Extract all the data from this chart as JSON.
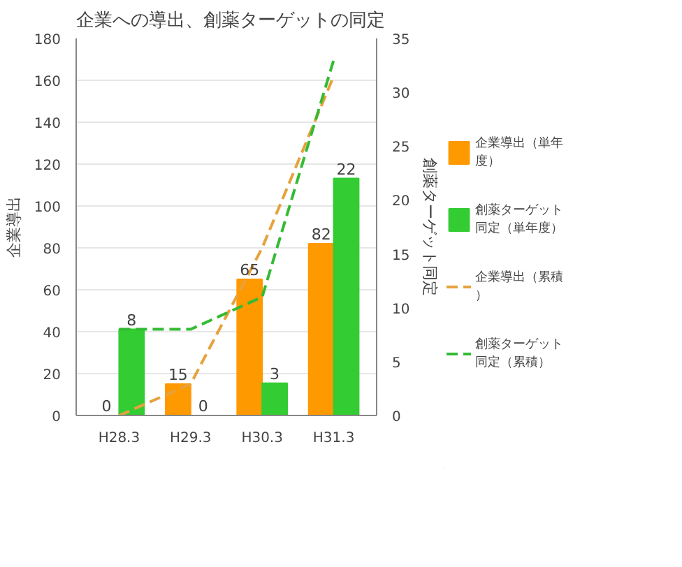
{
  "chart_data": {
    "type": "bar",
    "title": "企業への導出、創薬ターゲットの同定",
    "ylabel": "企業導出",
    "y2label": "創薬ターゲット同定",
    "categories": [
      "H28.3",
      "H29.3",
      "H30.3",
      "H31.3"
    ],
    "series": [
      {
        "name": "企業導出（単年度）",
        "color": "#ff9900",
        "values": [
          0,
          15,
          65,
          82
        ],
        "value_labels": [
          "0",
          "15",
          "65",
          "82"
        ]
      },
      {
        "name": "創薬ターゲット同定（単年度）",
        "color": "#33cc33",
        "values": [
          8,
          0,
          3,
          22
        ],
        "axis": "y2",
        "value_labels": [
          "8",
          "0",
          "3",
          "22"
        ]
      },
      {
        "name": "企業導出（累積）",
        "type": "line",
        "color": "#e6a23c",
        "values": [
          0,
          15,
          80,
          162
        ],
        "line_style": "dashed"
      },
      {
        "name": "創薬ターゲット同定（累積）",
        "type": "line",
        "color": "#33bb33",
        "values": [
          8,
          8,
          11,
          33
        ],
        "axis": "y2",
        "line_style": "dashed"
      }
    ],
    "ylim": [
      0,
      180
    ],
    "yticks": [
      0,
      20,
      40,
      60,
      80,
      100,
      120,
      140,
      160,
      180
    ],
    "y2lim": [
      0,
      35
    ],
    "y2ticks": [
      0,
      5,
      10,
      15,
      20,
      25,
      30,
      35
    ],
    "grid": "y",
    "legend": "right",
    "marker": "none"
  }
}
